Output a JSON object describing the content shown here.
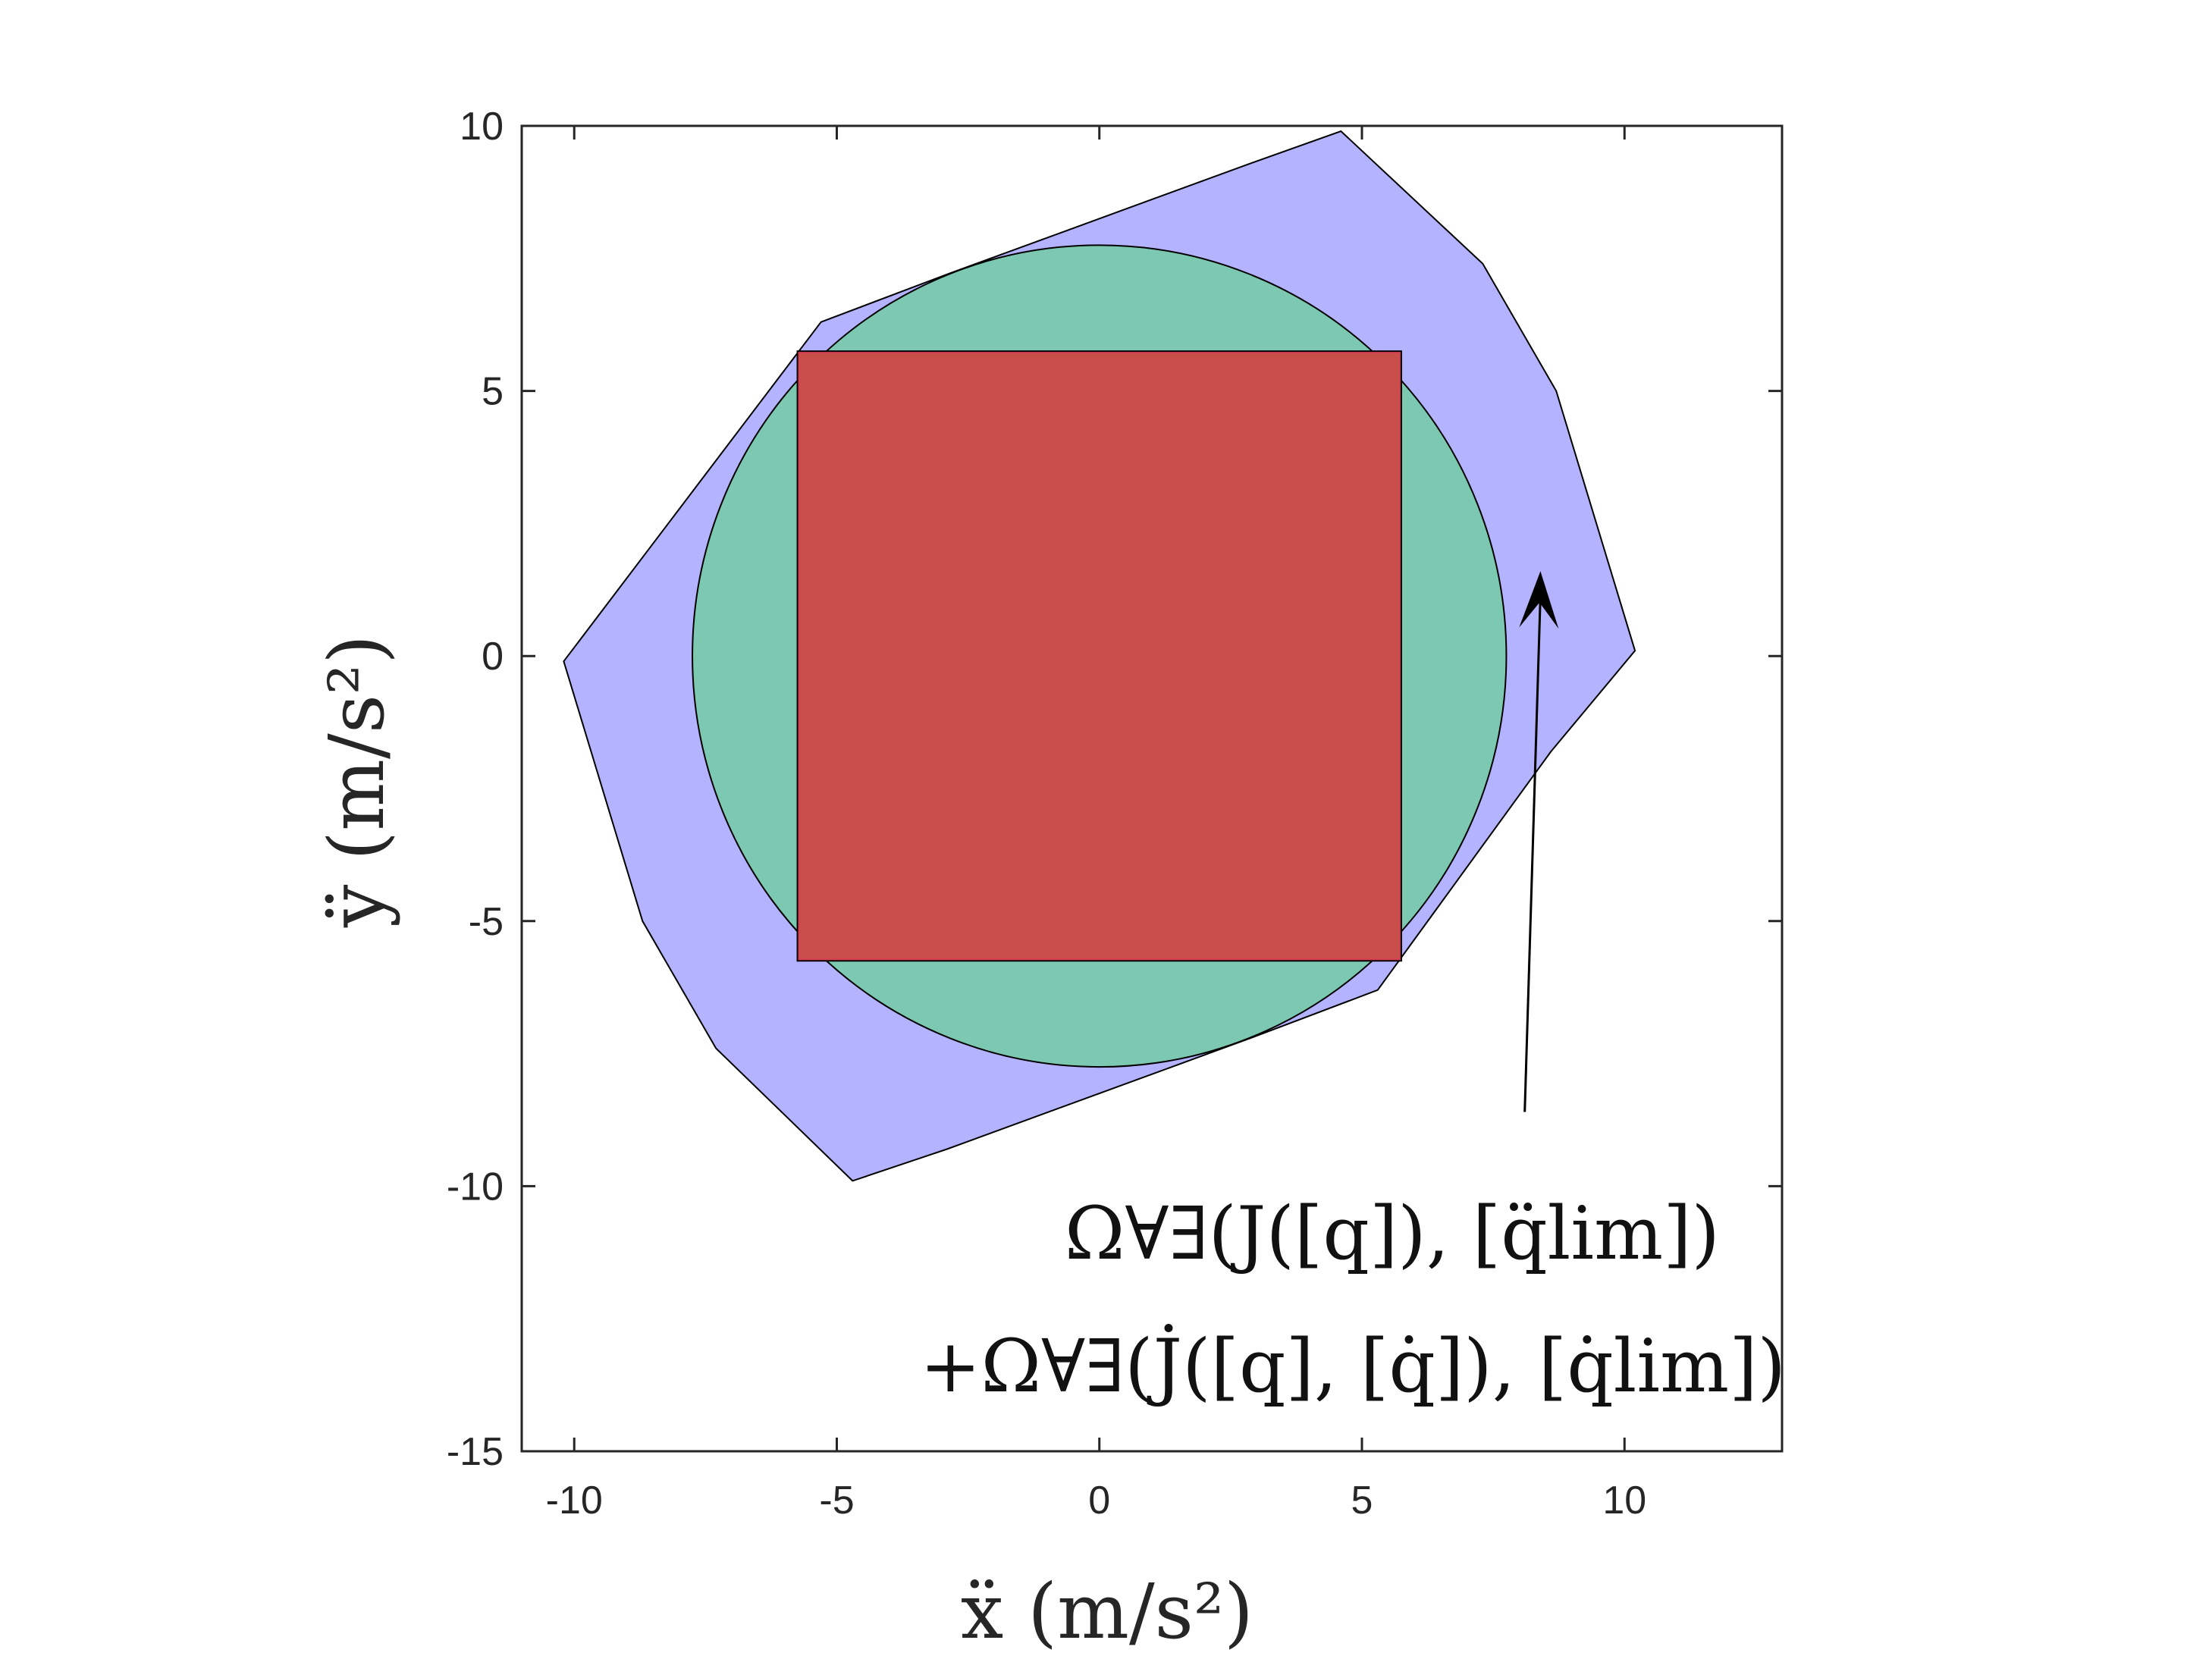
{
  "chart_data": {
    "type": "area",
    "xlabel": "ẍ (m/s²)",
    "ylabel": "ÿ (m/s²)",
    "xlim": [
      -11,
      13
    ],
    "ylim": [
      -15,
      10
    ],
    "xticks": [
      -10,
      -5,
      0,
      5,
      10
    ],
    "yticks": [
      -15,
      -10,
      -5,
      0,
      5,
      10
    ],
    "xtick_labels": [
      "-10",
      "-5",
      "0",
      "5",
      "10"
    ],
    "ytick_labels": [
      "-15",
      "-10",
      "-5",
      "0",
      "5",
      "10"
    ],
    "grid": false,
    "series": [
      {
        "shape": "polygon",
        "color": "#b3b3ff",
        "points": [
          [
            -10.2,
            -0.1
          ],
          [
            -8.7,
            -5.0
          ],
          [
            -7.3,
            -7.4
          ],
          [
            -4.7,
            -9.9
          ],
          [
            -2.9,
            -9.3
          ],
          [
            2.9,
            -7.2
          ],
          [
            5.3,
            -6.3
          ],
          [
            8.6,
            -1.8
          ],
          [
            10.2,
            0.1
          ],
          [
            8.7,
            5.0
          ],
          [
            7.3,
            7.4
          ],
          [
            4.6,
            9.9
          ],
          [
            2.9,
            9.3
          ],
          [
            -2.9,
            7.2
          ],
          [
            -5.3,
            6.3
          ]
        ]
      },
      {
        "shape": "circle",
        "color": "#7cc8b0",
        "center": [
          0,
          0
        ],
        "radius": 7.75
      },
      {
        "shape": "rectangle",
        "color": "#c9504a",
        "x": [
          -5.75,
          5.75
        ],
        "y": [
          -5.75,
          5.75
        ]
      }
    ],
    "annotations": [
      {
        "line1": "Ω∀∃(J([q]), [q̈lim])",
        "line2": "+Ω∀∃(J̇([q], [q̇]), [q̇lim])",
        "arrow_from": [
          8.1,
          -8.6
        ],
        "arrow_to": [
          8.4,
          1.6
        ]
      }
    ]
  }
}
